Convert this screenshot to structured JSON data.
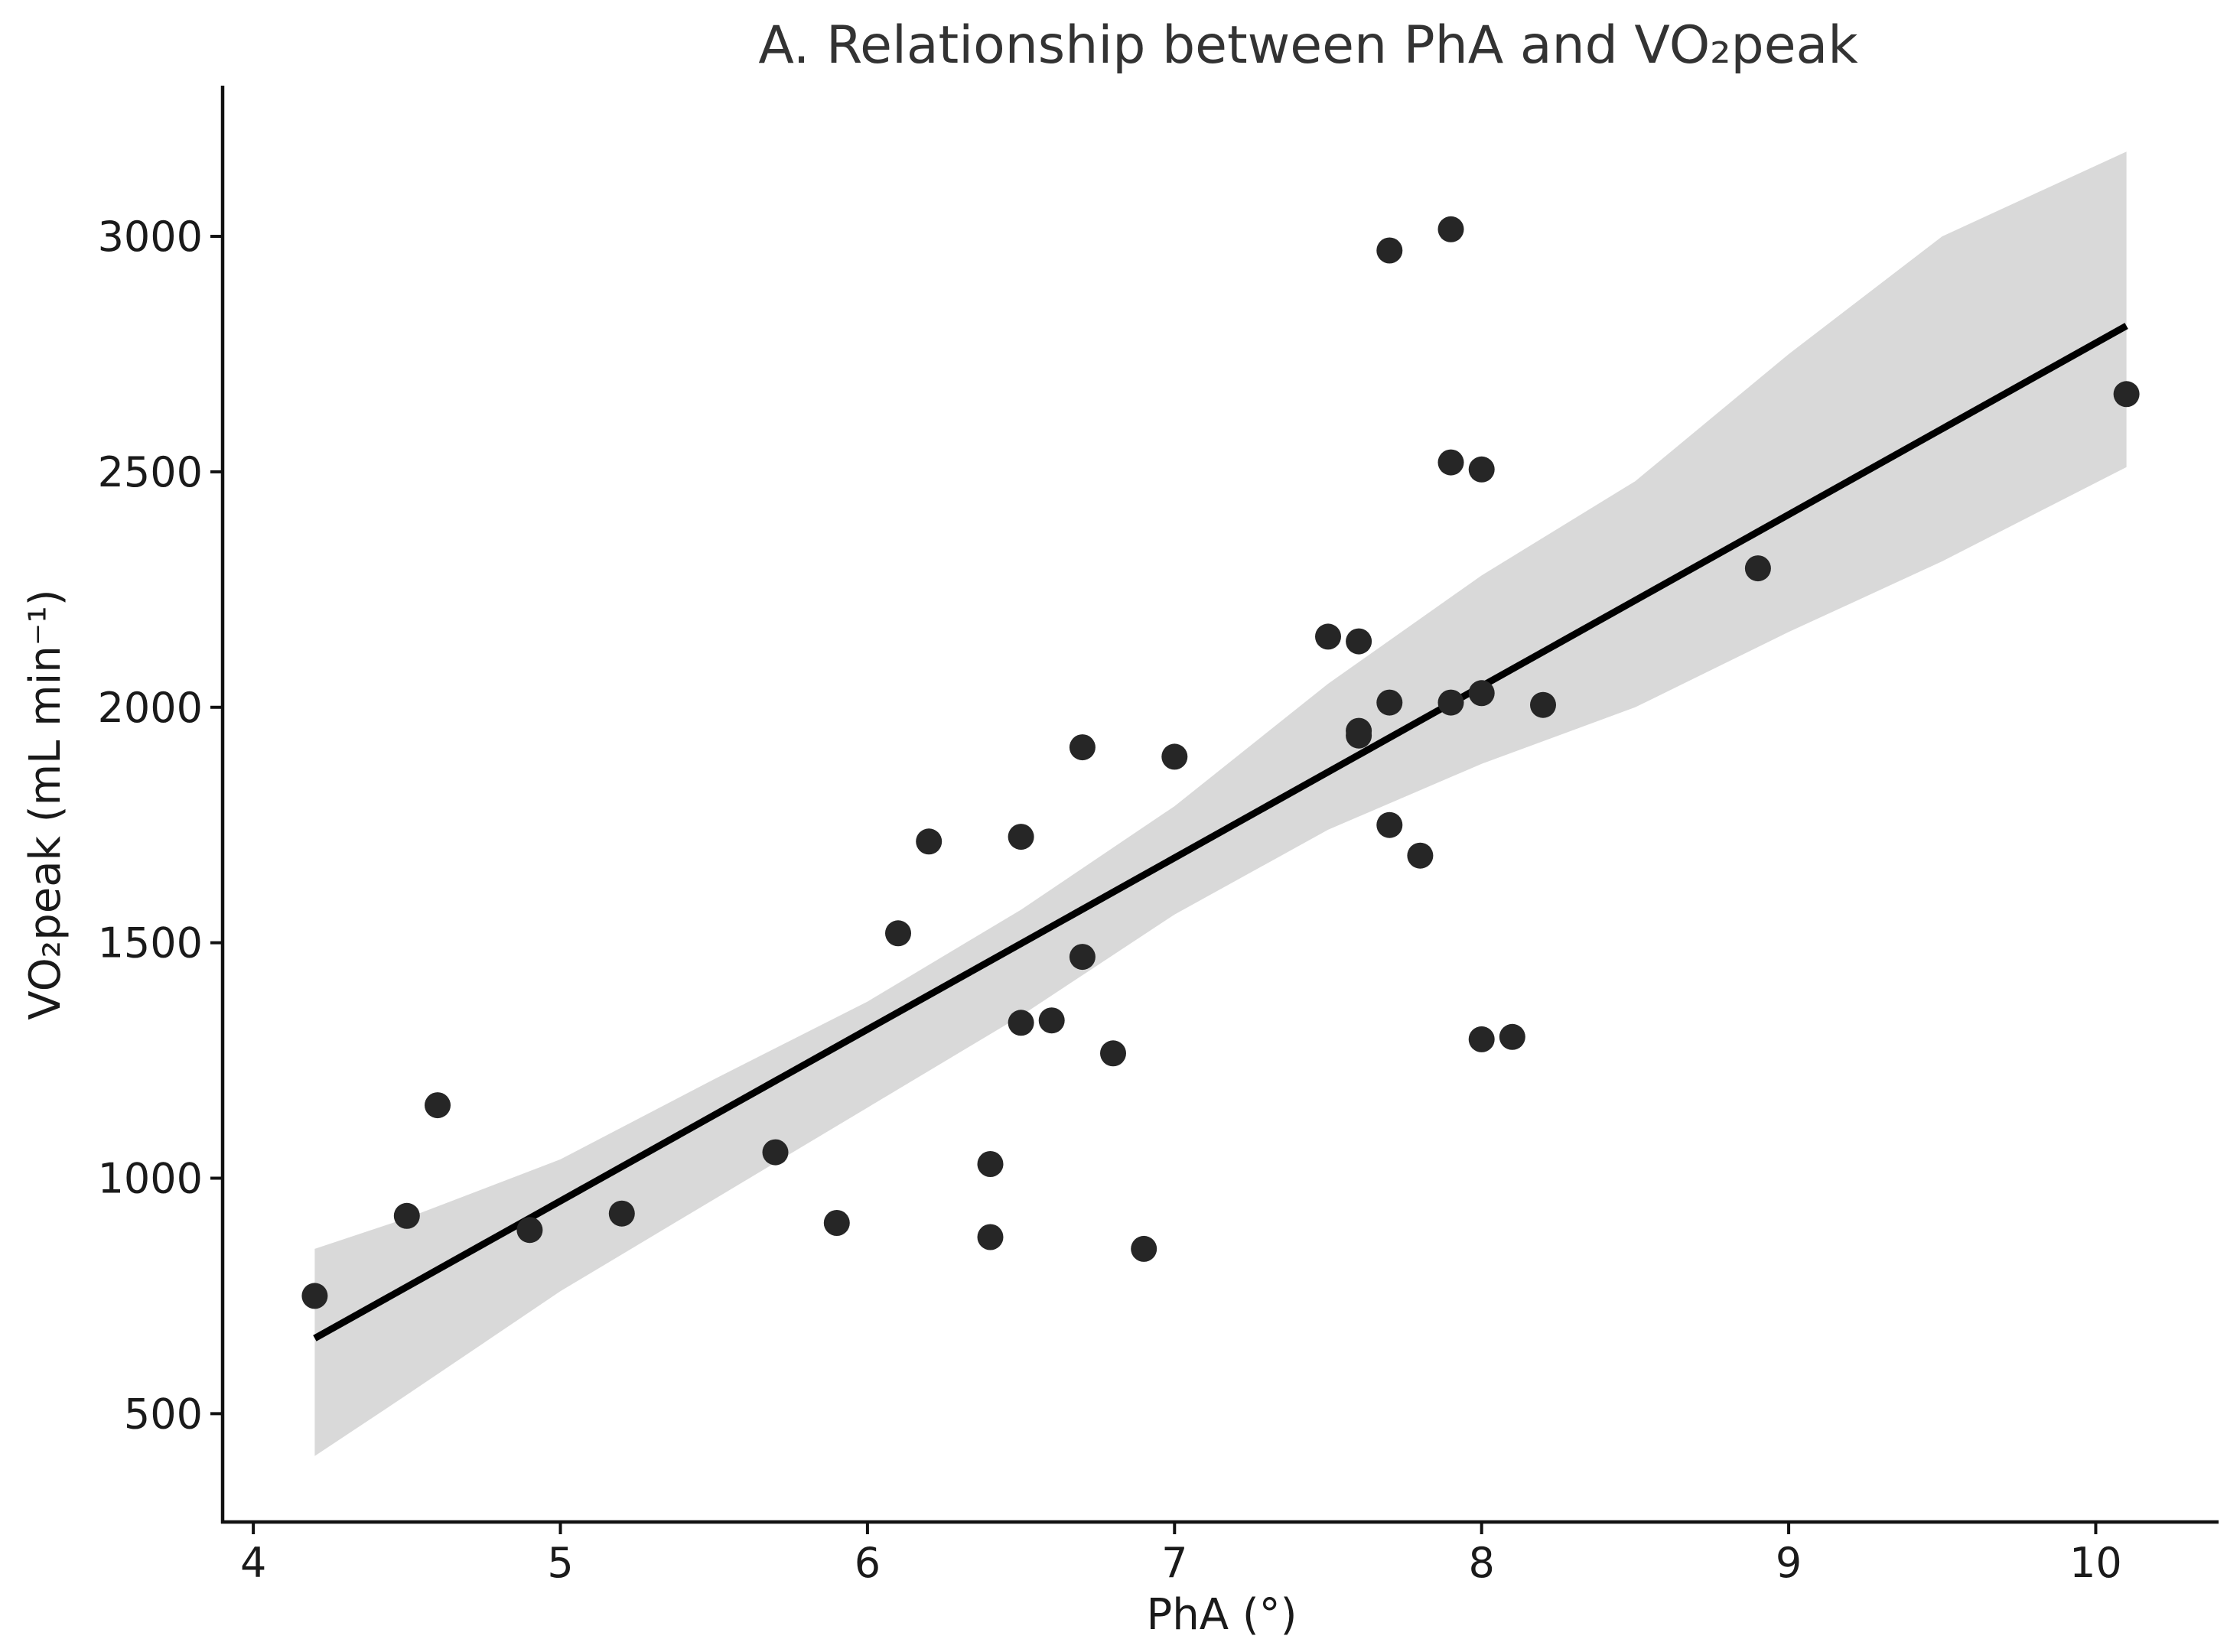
{
  "chart_data": {
    "type": "scatter",
    "title": "A. Relationship between PhA and VO₂peak",
    "xlabel": "PhA (°)",
    "ylabel": "VO₂peak (mL min⁻¹)",
    "xlim": [
      3.9,
      10.4
    ],
    "ylim": [
      270,
      3320
    ],
    "xticks": [
      4,
      5,
      6,
      7,
      8,
      9,
      10
    ],
    "yticks": [
      500,
      1000,
      1500,
      2000,
      2500,
      3000
    ],
    "grid": false,
    "legend": "none",
    "colors": {
      "points": "#262626",
      "fit_line": "#000000",
      "ci_band": "#d9d9d9",
      "axes": "#111111",
      "title": "#333333"
    },
    "series": [
      {
        "name": "observations",
        "points": [
          {
            "x": 4.2,
            "y": 750
          },
          {
            "x": 4.5,
            "y": 920
          },
          {
            "x": 4.6,
            "y": 1155
          },
          {
            "x": 4.9,
            "y": 890
          },
          {
            "x": 5.2,
            "y": 925
          },
          {
            "x": 5.7,
            "y": 1055
          },
          {
            "x": 5.9,
            "y": 905
          },
          {
            "x": 6.1,
            "y": 1520
          },
          {
            "x": 6.2,
            "y": 1715
          },
          {
            "x": 6.4,
            "y": 1030
          },
          {
            "x": 6.4,
            "y": 875
          },
          {
            "x": 6.5,
            "y": 1725
          },
          {
            "x": 6.5,
            "y": 1330
          },
          {
            "x": 6.6,
            "y": 1335
          },
          {
            "x": 6.7,
            "y": 1915
          },
          {
            "x": 6.7,
            "y": 1470
          },
          {
            "x": 6.8,
            "y": 1265
          },
          {
            "x": 6.9,
            "y": 850
          },
          {
            "x": 7.0,
            "y": 1895
          },
          {
            "x": 7.5,
            "y": 2150
          },
          {
            "x": 7.6,
            "y": 2140
          },
          {
            "x": 7.6,
            "y": 1950
          },
          {
            "x": 7.6,
            "y": 1940
          },
          {
            "x": 7.7,
            "y": 2970
          },
          {
            "x": 7.7,
            "y": 2010
          },
          {
            "x": 7.7,
            "y": 1750
          },
          {
            "x": 7.8,
            "y": 1685
          },
          {
            "x": 7.9,
            "y": 3015
          },
          {
            "x": 7.9,
            "y": 2520
          },
          {
            "x": 7.9,
            "y": 2010
          },
          {
            "x": 8.0,
            "y": 2505
          },
          {
            "x": 8.0,
            "y": 2030
          },
          {
            "x": 8.0,
            "y": 1295
          },
          {
            "x": 8.1,
            "y": 1300
          },
          {
            "x": 8.2,
            "y": 2005
          },
          {
            "x": 8.9,
            "y": 2295
          },
          {
            "x": 10.1,
            "y": 2665
          }
        ]
      }
    ],
    "fit_line": {
      "x0": 4.2,
      "y0": 660,
      "x1": 10.1,
      "y1": 2810
    },
    "confidence_band": {
      "x": [
        4.2,
        4.5,
        5.0,
        5.5,
        6.0,
        6.5,
        7.0,
        7.5,
        8.0,
        8.5,
        9.0,
        9.5,
        10.1
      ],
      "upper": [
        850,
        915,
        1040,
        1210,
        1375,
        1570,
        1790,
        2050,
        2280,
        2480,
        2750,
        3000,
        3180
      ],
      "lower": [
        410,
        540,
        760,
        955,
        1150,
        1345,
        1560,
        1740,
        1880,
        2000,
        2160,
        2310,
        2510
      ]
    }
  }
}
